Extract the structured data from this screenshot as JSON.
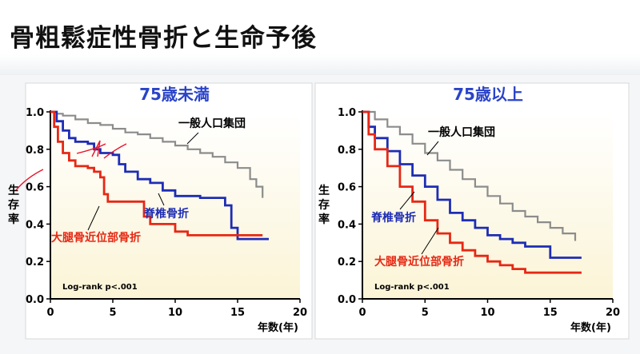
{
  "slide": {
    "title": "骨粗鬆症性骨折と生命予後"
  },
  "colors": {
    "general": "#8c8c8c",
    "spine": "#1e2db4",
    "hip": "#e62814",
    "title_blue": "#2a43c9",
    "annotation": "#e8142a"
  },
  "chart_data": [
    {
      "type": "line",
      "title": "75歳未満",
      "xlabel": "年数(年)",
      "ylabel": "生存率",
      "xlim": [
        0,
        20
      ],
      "ylim": [
        0,
        1.0
      ],
      "x_ticks": [
        "0",
        "5",
        "10",
        "15",
        "20"
      ],
      "y_ticks": [
        "0.0",
        "0.2",
        "0.4",
        "0.6",
        "0.8",
        "1.0"
      ],
      "annotation": "Log-rank p<.001",
      "series": [
        {
          "name": "一般人口集団",
          "color": "#8c8c8c",
          "points": [
            [
              0,
              1.0
            ],
            [
              0.5,
              0.99
            ],
            [
              1,
              0.98
            ],
            [
              2,
              0.96
            ],
            [
              3,
              0.94
            ],
            [
              4,
              0.93
            ],
            [
              5,
              0.91
            ],
            [
              6,
              0.89
            ],
            [
              7,
              0.88
            ],
            [
              8,
              0.86
            ],
            [
              9,
              0.84
            ],
            [
              10,
              0.82
            ],
            [
              11,
              0.8
            ],
            [
              12,
              0.78
            ],
            [
              13,
              0.76
            ],
            [
              14,
              0.73
            ],
            [
              15,
              0.7
            ],
            [
              16,
              0.64
            ],
            [
              16.5,
              0.6
            ],
            [
              17,
              0.54
            ]
          ]
        },
        {
          "name": "脊椎骨折",
          "color": "#1e2db4",
          "points": [
            [
              0,
              1.0
            ],
            [
              0.5,
              0.95
            ],
            [
              1,
              0.9
            ],
            [
              1.5,
              0.86
            ],
            [
              2,
              0.84
            ],
            [
              3,
              0.83
            ],
            [
              3.5,
              0.8
            ],
            [
              4,
              0.78
            ],
            [
              5,
              0.77
            ],
            [
              5.5,
              0.72
            ],
            [
              6,
              0.68
            ],
            [
              7,
              0.64
            ],
            [
              8,
              0.62
            ],
            [
              9,
              0.58
            ],
            [
              10,
              0.55
            ],
            [
              11,
              0.55
            ],
            [
              12,
              0.54
            ],
            [
              13,
              0.54
            ],
            [
              14,
              0.5
            ],
            [
              14.5,
              0.38
            ],
            [
              15,
              0.32
            ],
            [
              16,
              0.32
            ],
            [
              17.5,
              0.32
            ]
          ]
        },
        {
          "name": "大腿骨近位部骨折",
          "color": "#e62814",
          "points": [
            [
              0,
              1.0
            ],
            [
              0.3,
              0.92
            ],
            [
              0.6,
              0.84
            ],
            [
              1,
              0.78
            ],
            [
              1.5,
              0.74
            ],
            [
              2,
              0.71
            ],
            [
              3,
              0.7
            ],
            [
              3.5,
              0.68
            ],
            [
              4,
              0.65
            ],
            [
              4.3,
              0.56
            ],
            [
              4.6,
              0.52
            ],
            [
              5,
              0.52
            ],
            [
              7,
              0.52
            ],
            [
              7.5,
              0.44
            ],
            [
              8,
              0.4
            ],
            [
              10,
              0.36
            ],
            [
              11,
              0.34
            ],
            [
              13,
              0.34
            ],
            [
              15,
              0.34
            ],
            [
              17,
              0.34
            ]
          ]
        }
      ]
    },
    {
      "type": "line",
      "title": "75歳以上",
      "xlabel": "年数(年)",
      "ylabel": "生存率",
      "xlim": [
        0,
        20
      ],
      "ylim": [
        0,
        1.0
      ],
      "x_ticks": [
        "0",
        "5",
        "10",
        "15",
        "20"
      ],
      "y_ticks": [
        "0.0",
        "0.2",
        "0.4",
        "0.6",
        "0.8",
        "1.0"
      ],
      "annotation": "Log-rank p<.001",
      "series": [
        {
          "name": "一般人口集団",
          "color": "#8c8c8c",
          "points": [
            [
              0,
              1.0
            ],
            [
              1,
              0.96
            ],
            [
              2,
              0.92
            ],
            [
              3,
              0.88
            ],
            [
              4,
              0.83
            ],
            [
              5,
              0.78
            ],
            [
              6,
              0.74
            ],
            [
              7,
              0.69
            ],
            [
              8,
              0.64
            ],
            [
              9,
              0.6
            ],
            [
              10,
              0.55
            ],
            [
              11,
              0.51
            ],
            [
              12,
              0.47
            ],
            [
              13,
              0.44
            ],
            [
              14,
              0.41
            ],
            [
              15,
              0.38
            ],
            [
              16,
              0.35
            ],
            [
              17,
              0.31
            ]
          ]
        },
        {
          "name": "脊椎骨折",
          "color": "#1e2db4",
          "points": [
            [
              0,
              1.0
            ],
            [
              0.5,
              0.92
            ],
            [
              1,
              0.86
            ],
            [
              2,
              0.79
            ],
            [
              3,
              0.72
            ],
            [
              4,
              0.66
            ],
            [
              5,
              0.6
            ],
            [
              6,
              0.53
            ],
            [
              7,
              0.46
            ],
            [
              8,
              0.42
            ],
            [
              9,
              0.38
            ],
            [
              10,
              0.34
            ],
            [
              11,
              0.32
            ],
            [
              12,
              0.3
            ],
            [
              13,
              0.28
            ],
            [
              14,
              0.28
            ],
            [
              15,
              0.22
            ],
            [
              16,
              0.22
            ],
            [
              17.5,
              0.22
            ]
          ]
        },
        {
          "name": "大腿骨近位部骨折",
          "color": "#e62814",
          "points": [
            [
              0,
              1.0
            ],
            [
              0.5,
              0.88
            ],
            [
              1,
              0.8
            ],
            [
              2,
              0.71
            ],
            [
              3,
              0.6
            ],
            [
              4,
              0.52
            ],
            [
              5,
              0.42
            ],
            [
              6,
              0.35
            ],
            [
              7,
              0.3
            ],
            [
              8,
              0.26
            ],
            [
              9,
              0.23
            ],
            [
              10,
              0.2
            ],
            [
              11,
              0.18
            ],
            [
              12,
              0.16
            ],
            [
              13,
              0.14
            ],
            [
              15,
              0.14
            ],
            [
              17.5,
              0.14
            ]
          ]
        }
      ]
    }
  ]
}
